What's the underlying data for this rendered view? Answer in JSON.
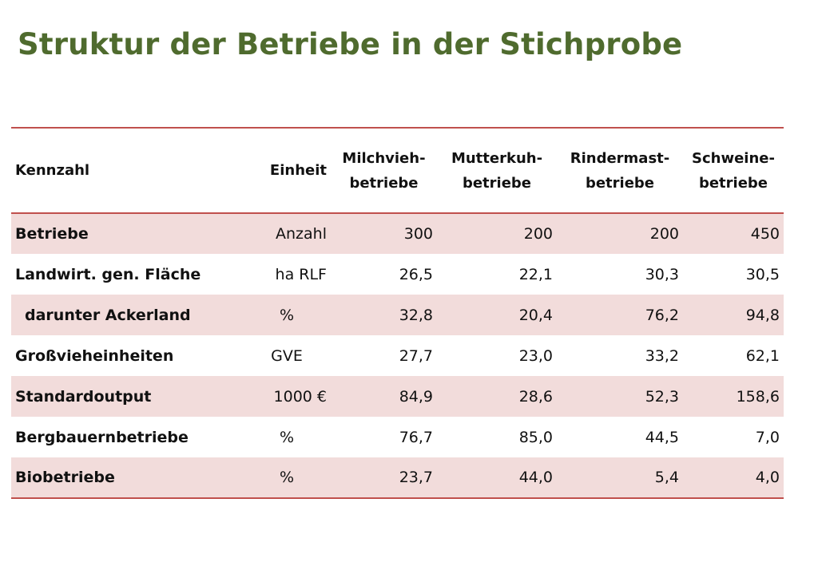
{
  "title": "Struktur der Betriebe in der Stichprobe",
  "colors": {
    "title": "#4f6b2e",
    "rule": "#c0504d",
    "shade": "#f2dcdb"
  },
  "table": {
    "headers": {
      "kennzahl": "Kennzahl",
      "einheit": "Einheit",
      "groups": [
        {
          "line1": "Milchvieh-",
          "line2": "betriebe"
        },
        {
          "line1": "Mutterkuh-",
          "line2": "betriebe"
        },
        {
          "line1": "Rindermast-",
          "line2": "betriebe"
        },
        {
          "line1": "Schweine-",
          "line2": "betriebe"
        }
      ]
    },
    "rows": [
      {
        "label": "Betriebe",
        "unit": "Anzahl",
        "values": [
          "300",
          "200",
          "200",
          "450"
        ]
      },
      {
        "label": "Landwirt. gen. Fläche",
        "unit": "ha RLF",
        "values": [
          "26,5",
          "22,1",
          "30,3",
          "30,5"
        ]
      },
      {
        "label": "darunter Ackerland",
        "unit": "%",
        "values": [
          "32,8",
          "20,4",
          "76,2",
          "94,8"
        ]
      },
      {
        "label": "Großvieheinheiten",
        "unit": "GVE",
        "values": [
          "27,7",
          "23,0",
          "33,2",
          "62,1"
        ]
      },
      {
        "label": "Standardoutput",
        "unit": "1000 €",
        "values": [
          "84,9",
          "28,6",
          "52,3",
          "158,6"
        ]
      },
      {
        "label": "Bergbauernbetriebe",
        "unit": "%",
        "values": [
          "76,7",
          "85,0",
          "44,5",
          "7,0"
        ]
      },
      {
        "label": "Biobetriebe",
        "unit": "%",
        "values": [
          "23,7",
          "44,0",
          "5,4",
          "4,0"
        ]
      }
    ]
  }
}
